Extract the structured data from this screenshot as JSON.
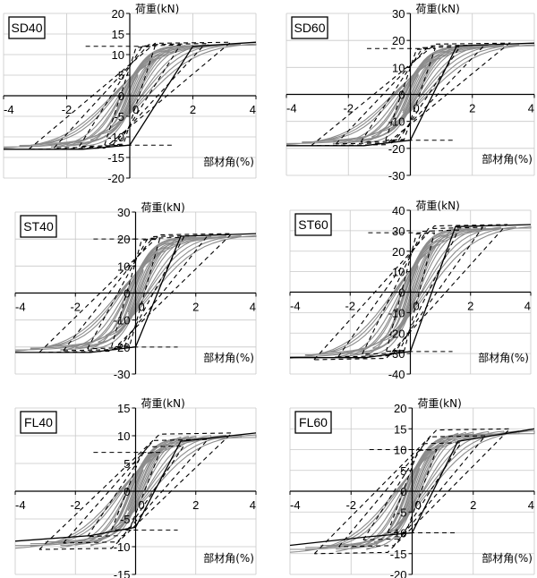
{
  "colors": {
    "grid": "#c8c8c8",
    "axis": "#000000",
    "test_curve": "#8c8c8c",
    "envelope": "#000000"
  },
  "chart_data": [
    {
      "type": "line",
      "label": "SD40",
      "ylabel": "荷重(kN)",
      "xlabel": "部材角(%)",
      "xlim": [
        -4,
        4
      ],
      "ylim": [
        -20,
        20
      ],
      "xticks": [
        "-4",
        "-2",
        "0",
        "2",
        "4"
      ],
      "yticks": [
        "20",
        "15",
        "10",
        "5",
        "0",
        "-5",
        "-10",
        "-15",
        "-20"
      ],
      "envelope": [
        {
          "x": -4.0,
          "y": -13
        },
        {
          "x": -1.5,
          "y": -13
        },
        {
          "x": 0.0,
          "y": -12
        },
        {
          "x": 2.0,
          "y": 12
        },
        {
          "x": 4.0,
          "y": 13
        }
      ],
      "peak_load": 13,
      "yield_load": 12,
      "dashed_peaks": [
        {
          "x": 0.5,
          "y": 10
        },
        {
          "x": 1.0,
          "y": 12
        },
        {
          "x": 1.5,
          "y": 13.5
        },
        {
          "x": 2.0,
          "y": 14
        },
        {
          "x": -1.2,
          "y": -12
        },
        {
          "x": -2.0,
          "y": -13
        }
      ]
    },
    {
      "type": "line",
      "label": "SD60",
      "ylabel": "荷重(kN)",
      "xlabel": "部材角(%)",
      "xlim": [
        -4,
        4
      ],
      "ylim": [
        -30,
        30
      ],
      "xticks": [
        "-4",
        "-2",
        "0",
        "2",
        "4"
      ],
      "yticks": [
        "30",
        "20",
        "10",
        "0",
        "-10",
        "-20",
        "-30"
      ],
      "envelope": [
        {
          "x": -4.0,
          "y": -19
        },
        {
          "x": -1.5,
          "y": -19
        },
        {
          "x": 0.0,
          "y": -17
        },
        {
          "x": 1.5,
          "y": 18
        },
        {
          "x": 4.0,
          "y": 19
        }
      ],
      "peak_load": 19,
      "yield_load": 17,
      "dashed_peaks": [
        {
          "x": 0.5,
          "y": 14
        },
        {
          "x": 1.0,
          "y": 18
        },
        {
          "x": 1.5,
          "y": 20
        },
        {
          "x": 2.0,
          "y": 21
        },
        {
          "x": -1.2,
          "y": -17
        },
        {
          "x": -2.0,
          "y": -19
        }
      ]
    },
    {
      "type": "line",
      "label": "ST40",
      "ylabel": "荷重(kN)",
      "xlabel": "部材角(%)",
      "xlim": [
        -4,
        4
      ],
      "ylim": [
        -30,
        30
      ],
      "xticks": [
        "-4",
        "-2",
        "0",
        "2",
        "4"
      ],
      "yticks": [
        "30",
        "20",
        "10",
        "0",
        "-10",
        "-20",
        "-30"
      ],
      "envelope": [
        {
          "x": -4.0,
          "y": -22
        },
        {
          "x": -1.5,
          "y": -22
        },
        {
          "x": 0.0,
          "y": -20
        },
        {
          "x": 1.5,
          "y": 21
        },
        {
          "x": 4.0,
          "y": 22
        }
      ],
      "peak_load": 22,
      "yield_load": 20,
      "dashed_peaks": [
        {
          "x": 0.5,
          "y": 16
        },
        {
          "x": 1.0,
          "y": 21
        },
        {
          "x": 1.5,
          "y": 22
        },
        {
          "x": 2.0,
          "y": 23
        },
        {
          "x": -1.2,
          "y": -21
        },
        {
          "x": -2.0,
          "y": -23
        }
      ]
    },
    {
      "type": "line",
      "label": "ST60",
      "ylabel": "荷重(kN)",
      "xlabel": "部材角(%)",
      "xlim": [
        -4,
        4
      ],
      "ylim": [
        -40,
        40
      ],
      "xticks": [
        "-4",
        "-2",
        "0",
        "2",
        "4"
      ],
      "yticks": [
        "40",
        "30",
        "20",
        "10",
        "0",
        "-10",
        "-20",
        "-30",
        "-40"
      ],
      "envelope": [
        {
          "x": -4.0,
          "y": -32
        },
        {
          "x": -1.5,
          "y": -32
        },
        {
          "x": 0.0,
          "y": -29
        },
        {
          "x": 1.5,
          "y": 32
        },
        {
          "x": 4.0,
          "y": 33
        }
      ],
      "peak_load": 33,
      "yield_load": 29,
      "dashed_peaks": [
        {
          "x": 0.5,
          "y": 22
        },
        {
          "x": 1.0,
          "y": 30
        },
        {
          "x": 1.5,
          "y": 34
        },
        {
          "x": 2.0,
          "y": 33
        },
        {
          "x": -1.2,
          "y": -30
        },
        {
          "x": -2.0,
          "y": -33
        }
      ]
    },
    {
      "type": "line",
      "label": "FL40",
      "ylabel": "荷重(kN)",
      "xlabel": "部材角(%)",
      "xlim": [
        -4,
        4
      ],
      "ylim": [
        -15,
        15
      ],
      "xticks": [
        "-4",
        "-2",
        "0",
        "2",
        "4"
      ],
      "yticks": [
        "15",
        "10",
        "5",
        "0",
        "-5",
        "-10",
        "-15"
      ],
      "envelope": [
        {
          "x": -4.0,
          "y": -9
        },
        {
          "x": -1.5,
          "y": -8
        },
        {
          "x": 0.0,
          "y": -6.5
        },
        {
          "x": 1.5,
          "y": 9
        },
        {
          "x": 4.0,
          "y": 10.5
        }
      ],
      "peak_load": 10.5,
      "yield_load": 7,
      "dashed_peaks": [
        {
          "x": 0.5,
          "y": 6
        },
        {
          "x": 1.0,
          "y": 8
        },
        {
          "x": 1.5,
          "y": 9
        },
        {
          "x": 2.0,
          "y": 10
        },
        {
          "x": -1.2,
          "y": -7
        },
        {
          "x": -2.0,
          "y": -8
        }
      ]
    },
    {
      "type": "line",
      "label": "FL60",
      "ylabel": "荷重(kN)",
      "xlabel": "部材角(%)",
      "xlim": [
        -4,
        4
      ],
      "ylim": [
        -20,
        20
      ],
      "xticks": [
        "-4",
        "-2",
        "0",
        "2",
        "4"
      ],
      "yticks": [
        "20",
        "15",
        "10",
        "5",
        "0",
        "-5",
        "-10",
        "-15",
        "-20"
      ],
      "envelope": [
        {
          "x": -4.0,
          "y": -13
        },
        {
          "x": -1.5,
          "y": -11
        },
        {
          "x": 0.0,
          "y": -10
        },
        {
          "x": 1.5,
          "y": 12
        },
        {
          "x": 4.0,
          "y": 15
        }
      ],
      "peak_load": 15,
      "yield_load": 10,
      "dashed_peaks": [
        {
          "x": 0.5,
          "y": 8
        },
        {
          "x": 1.0,
          "y": 11
        },
        {
          "x": 1.5,
          "y": 12
        },
        {
          "x": 2.0,
          "y": 13
        },
        {
          "x": -1.2,
          "y": -10
        },
        {
          "x": -2.0,
          "y": -12
        }
      ]
    }
  ]
}
